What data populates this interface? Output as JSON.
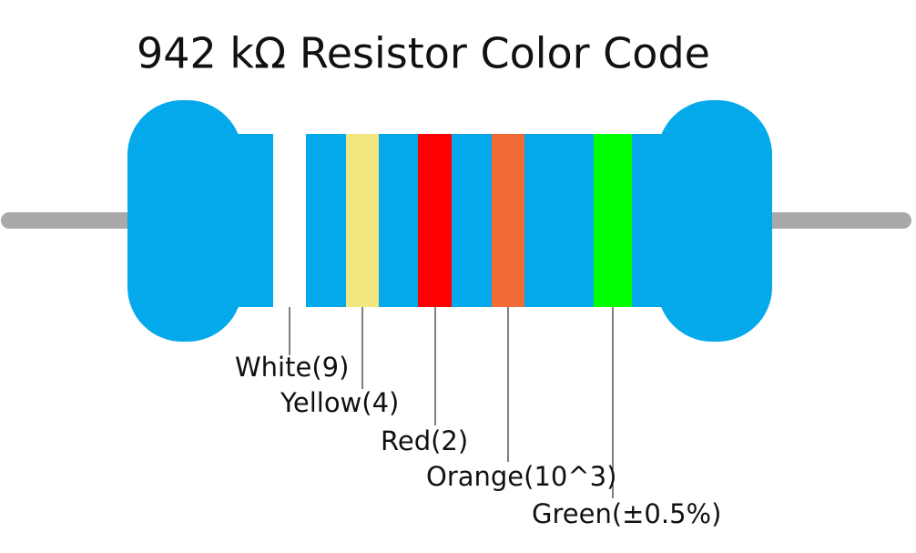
{
  "title": "942 kΩ Resistor Color Code",
  "bands": [
    {
      "label": "White(9)"
    },
    {
      "label": "Yellow(4)"
    },
    {
      "label": "Red(2)"
    },
    {
      "label": "Orange(10^3)"
    },
    {
      "label": "Green(±0.5%)"
    }
  ]
}
